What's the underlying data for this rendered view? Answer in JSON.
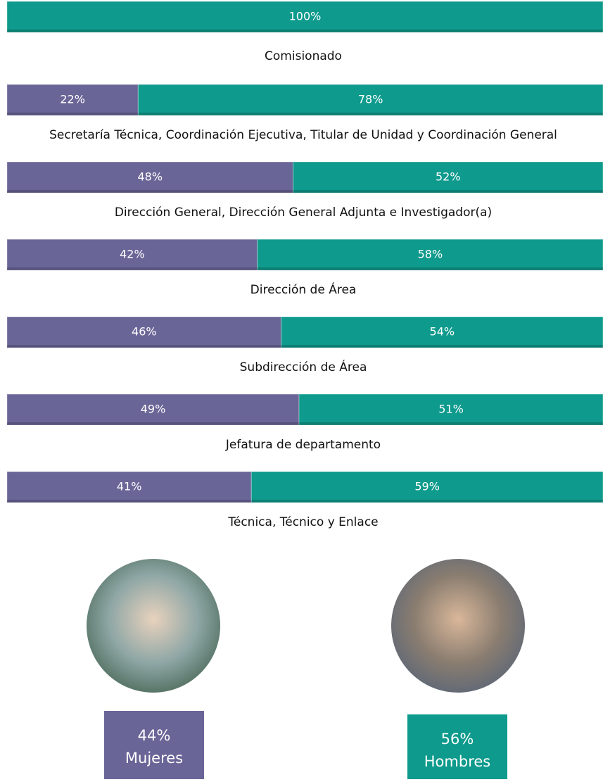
{
  "chart_data": {
    "type": "stacked-bar-100",
    "categories": [
      "Comisionado",
      "Secretaría Técnica, Coordinación Ejecutiva, Titular de Unidad y Coordinación General",
      "Dirección General, Dirección General Adjunta e Investigador(a)",
      "Dirección de Área",
      "Subdirección de Área",
      "Jefatura de departamento",
      "Técnica, Técnico y Enlace"
    ],
    "xlim": [
      0,
      100
    ],
    "series": [
      {
        "name": "Mujeres",
        "color": "#6a6597",
        "values": [
          0,
          22,
          48,
          42,
          46,
          49,
          41
        ],
        "value_labels": [
          null,
          "22%",
          "48%",
          "42%",
          "46%",
          "49%",
          "41%"
        ]
      },
      {
        "name": "Hombres",
        "color": "#0e9a8c",
        "values": [
          100,
          78,
          52,
          58,
          54,
          51,
          59
        ],
        "value_labels": [
          "100%",
          "78%",
          "52%",
          "58%",
          "54%",
          "51%",
          "59%"
        ]
      }
    ],
    "totals": {
      "values": [
        44,
        56
      ],
      "value_labels": [
        "44%",
        "56%"
      ]
    }
  }
}
